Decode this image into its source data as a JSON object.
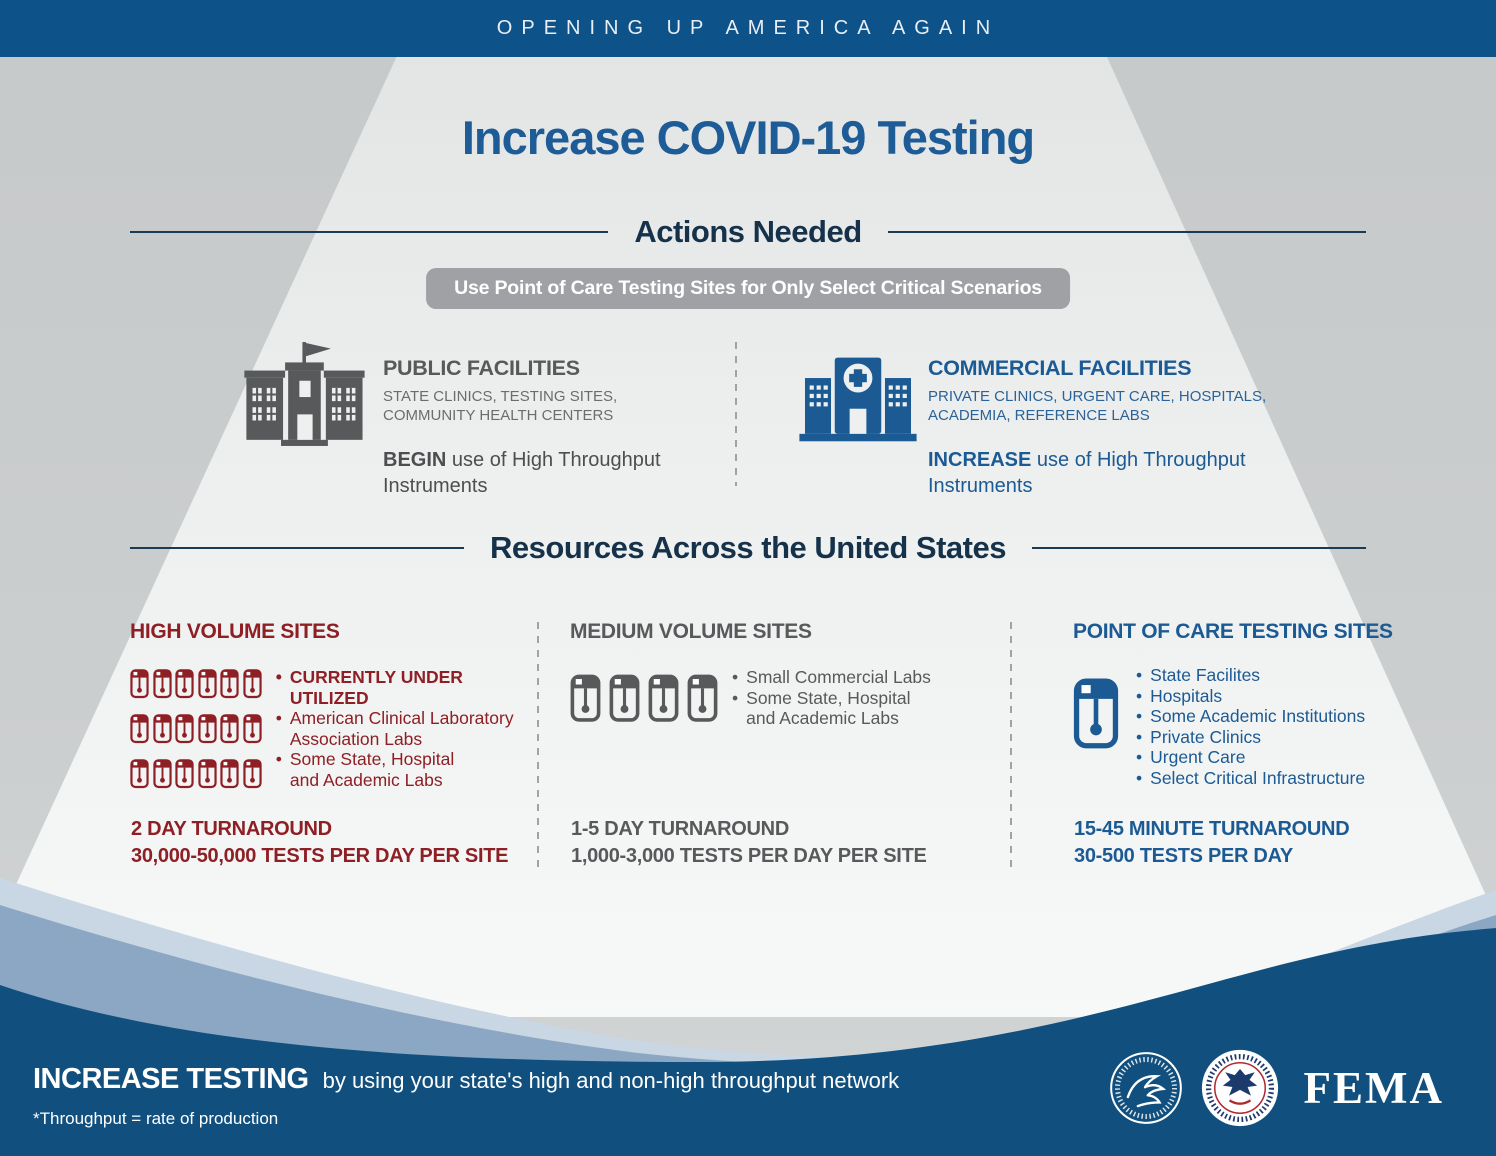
{
  "banner": {
    "text": "OPENING UP AMERICA AGAIN"
  },
  "title": "Increase COVID-19 Testing",
  "actions": {
    "heading": "Actions Needed",
    "callout": "Use Point of Care Testing Sites for Only Select Critical Scenarios",
    "facilities": [
      {
        "name": "PUBLIC FACILITIES",
        "subtitle": "STATE CLINICS, TESTING SITES,\nCOMMUNITY HEALTH CENTERS",
        "action_bold": "BEGIN",
        "action_rest": " use of High Throughput\nInstruments",
        "icon": "government-building-icon",
        "color": "#58595b"
      },
      {
        "name": "COMMERCIAL FACILITIES",
        "subtitle": "PRIVATE CLINICS, URGENT CARE, HOSPITALS,\nACADEMIA, REFERENCE LABS",
        "action_bold": "INCREASE",
        "action_rest": " use of High Throughput\nInstruments",
        "icon": "hospital-building-icon",
        "color": "#1c5a94"
      }
    ]
  },
  "resources": {
    "heading": "Resources Across the United States",
    "columns": [
      {
        "title": "HIGH VOLUME SITES",
        "color": "#8e1f24",
        "icon": "specimen-vial-icon",
        "vial_count": 18,
        "vial_style": "small",
        "bullets": [
          {
            "text": "CURRENTLY UNDER UTILIZED",
            "bold": true
          },
          {
            "text": "American Clinical Laboratory\nAssociation Labs",
            "bold": false
          },
          {
            "text": "Some State, Hospital\nand Academic Labs",
            "bold": false
          }
        ],
        "turnaround": "2 DAY TURNAROUND",
        "capacity": "30,000-50,000 TESTS PER DAY PER SITE"
      },
      {
        "title": "MEDIUM VOLUME SITES",
        "color": "#58595b",
        "icon": "specimen-vial-icon",
        "vial_count": 4,
        "vial_style": "medium",
        "bullets": [
          {
            "text": "Small Commercial Labs",
            "bold": false
          },
          {
            "text": "Some State, Hospital\nand Academic Labs",
            "bold": false
          }
        ],
        "turnaround": "1-5 DAY TURNAROUND",
        "capacity": "1,000-3,000 TESTS PER DAY PER SITE"
      },
      {
        "title": "POINT OF CARE TESTING SITES",
        "color": "#1c5a94",
        "icon": "specimen-vial-icon",
        "vial_count": 1,
        "vial_style": "large",
        "bullets": [
          {
            "text": "State Facilites",
            "bold": false
          },
          {
            "text": "Hospitals",
            "bold": false
          },
          {
            "text": "Some Academic Institutions",
            "bold": false
          },
          {
            "text": "Private Clinics",
            "bold": false
          },
          {
            "text": "Urgent Care",
            "bold": false
          },
          {
            "text": "Select Critical Infrastructure",
            "bold": false
          }
        ],
        "turnaround": "15-45 MINUTE TURNAROUND",
        "capacity": "30-500 TESTS PER DAY"
      }
    ]
  },
  "footer": {
    "headline_bold": "INCREASE TESTING",
    "headline_rest": "by using your state's high and non-high throughput network",
    "footnote": "*Throughput = rate of production",
    "fema_label": "FEMA",
    "seals": [
      {
        "icon": "hhs-seal",
        "label": "Department of Health & Human Services USA"
      },
      {
        "icon": "dhs-seal",
        "label": "U.S. Department of Homeland Security"
      }
    ]
  },
  "palette": {
    "banner_blue": "#0d5288",
    "footer_blue": "#11507e",
    "accent_blue": "#1c5a94",
    "navy_heading": "#16324a",
    "maroon": "#8e1f24",
    "gray_text": "#58595b",
    "pill_gray": "#9fa1a4",
    "page_gray": "#c9cbcc",
    "wave_light": "#c9d6e3",
    "wave_medium": "#8ba7c3"
  }
}
